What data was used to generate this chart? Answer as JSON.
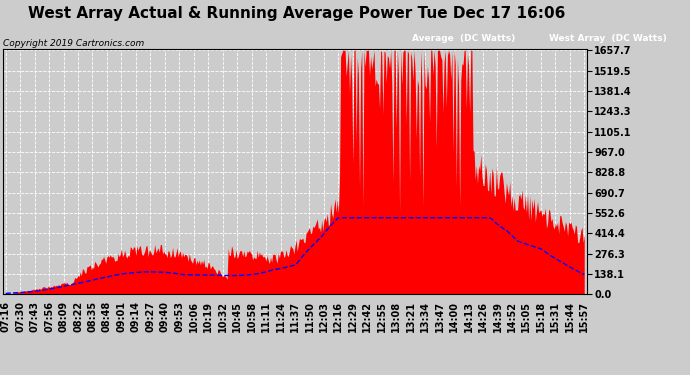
{
  "title": "West Array Actual & Running Average Power Tue Dec 17 16:06",
  "copyright": "Copyright 2019 Cartronics.com",
  "ylabel_right_ticks": [
    0.0,
    138.1,
    276.3,
    414.4,
    552.6,
    690.7,
    828.8,
    967.0,
    1105.1,
    1243.3,
    1381.4,
    1519.5,
    1657.7
  ],
  "ymax": 1657.7,
  "ymin": 0.0,
  "legend_avg_label": "Average  (DC Watts)",
  "legend_west_label": "West Array  (DC Watts)",
  "avg_color": "#0000ff",
  "west_color": "#ff0000",
  "bg_color": "#cccccc",
  "grid_color": "#ffffff",
  "title_fontsize": 11,
  "tick_fontsize": 7,
  "x_labels": [
    "07:16",
    "07:30",
    "07:43",
    "07:56",
    "08:09",
    "08:22",
    "08:35",
    "08:48",
    "09:01",
    "09:14",
    "09:27",
    "09:40",
    "09:53",
    "10:06",
    "10:19",
    "10:32",
    "10:45",
    "10:58",
    "11:11",
    "11:24",
    "11:37",
    "11:50",
    "12:03",
    "12:16",
    "12:29",
    "12:42",
    "12:55",
    "13:08",
    "13:21",
    "13:34",
    "13:47",
    "14:00",
    "14:13",
    "14:26",
    "14:39",
    "14:52",
    "15:05",
    "15:18",
    "15:31",
    "15:44",
    "15:57"
  ]
}
